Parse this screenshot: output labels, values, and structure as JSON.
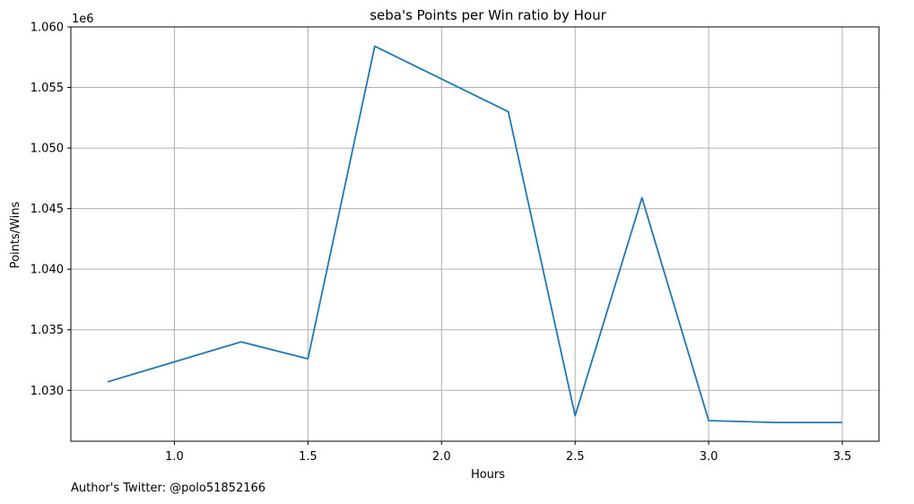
{
  "chart_data": {
    "type": "line",
    "title": "seba's Points per Win ratio by Hour",
    "xlabel": "Hours",
    "ylabel": "Points/Wins",
    "y_offset_label": "1e6",
    "y_multiplier": 1000000,
    "x": [
      0.75,
      1.0,
      1.25,
      1.5,
      1.75,
      2.0,
      2.25,
      2.5,
      2.75,
      3.0,
      3.25,
      3.5
    ],
    "series": [
      {
        "values": [
          1030700,
          1032350,
          1034000,
          1032600,
          1058400,
          1055700,
          1053000,
          1027900,
          1045900,
          1027500,
          1027350,
          1027350
        ]
      }
    ],
    "x_ticks": [
      "1.0",
      "1.5",
      "2.0",
      "2.5",
      "3.0",
      "3.5"
    ],
    "x_tick_values": [
      1.0,
      1.5,
      2.0,
      2.5,
      3.0,
      3.5
    ],
    "y_ticks": [
      "1.030",
      "1.035",
      "1.040",
      "1.045",
      "1.050",
      "1.055",
      "1.060"
    ],
    "y_tick_values": [
      1030000,
      1035000,
      1040000,
      1045000,
      1050000,
      1055000,
      1060000
    ],
    "xlim": [
      0.6125,
      3.6375
    ],
    "ylim": [
      1025800,
      1060000
    ],
    "grid": true,
    "line_color": "#1f77b4",
    "grid_color": "#b0b0b0"
  },
  "footnote": "Author's Twitter: @polo51852166"
}
